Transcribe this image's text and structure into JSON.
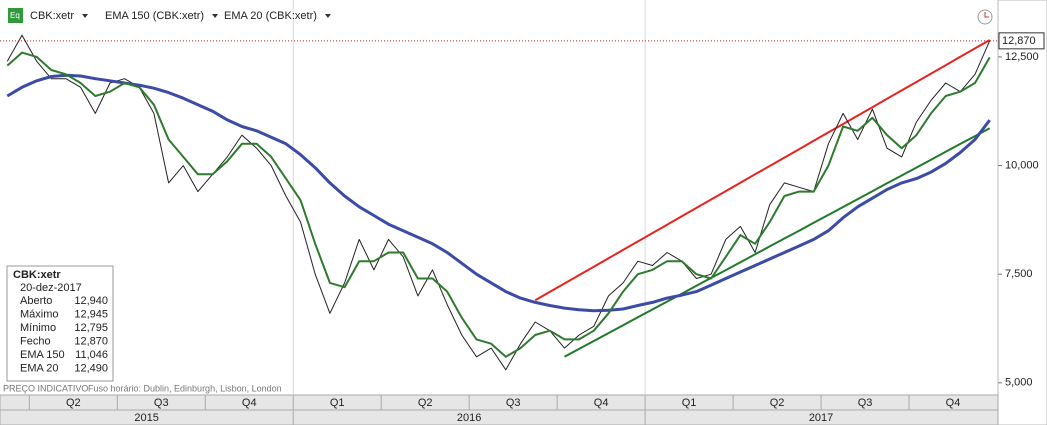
{
  "chart_data": {
    "type": "line",
    "categories": [
      null,
      null,
      "Q2",
      null,
      null,
      null,
      null,
      null,
      "Q3",
      null,
      null,
      null,
      null,
      null,
      "Q4",
      null,
      null,
      null,
      null,
      null,
      "Q1",
      null,
      null,
      null,
      null,
      null,
      "Q2",
      null,
      null,
      null,
      null,
      null,
      "Q3",
      null,
      null,
      null,
      null,
      null,
      "Q4",
      null,
      null,
      null,
      null,
      null,
      "Q1",
      null,
      null,
      null,
      null,
      null,
      "Q2",
      null,
      null,
      null,
      null,
      null,
      "Q3",
      null,
      null,
      null,
      null,
      null,
      "Q4",
      null,
      null,
      null,
      null,
      null
    ],
    "years": [
      "2015",
      "2016",
      "2017"
    ],
    "series": [
      {
        "name": "CBK:xetr",
        "color": "#222222",
        "values": [
          12400,
          13000,
          12400,
          12000,
          12000,
          11800,
          11200,
          11900,
          12000,
          11800,
          11200,
          9600,
          10000,
          9400,
          9800,
          10200,
          10700,
          10400,
          10000,
          9300,
          8700,
          7500,
          6600,
          7300,
          8300,
          7600,
          8300,
          7900,
          7000,
          7600,
          6800,
          6100,
          5600,
          5800,
          5300,
          5900,
          6400,
          6200,
          5800,
          6100,
          6300,
          7000,
          7300,
          7800,
          7700,
          8000,
          7800,
          7400,
          7500,
          8300,
          8600,
          8000,
          9100,
          9600,
          9500,
          9400,
          10500,
          11200,
          10600,
          11300,
          10400,
          10200,
          11000,
          11500,
          11900,
          11700,
          12100,
          12870
        ]
      },
      {
        "name": "EMA 150 (CBK:xetr)",
        "color": "#3b4ba6",
        "values": [
          11600,
          11800,
          11950,
          12050,
          12080,
          12060,
          12000,
          11950,
          11900,
          11850,
          11780,
          11680,
          11550,
          11400,
          11250,
          11050,
          10900,
          10800,
          10650,
          10500,
          10250,
          9950,
          9600,
          9300,
          9050,
          8850,
          8650,
          8500,
          8350,
          8200,
          8000,
          7750,
          7500,
          7300,
          7100,
          6950,
          6850,
          6780,
          6720,
          6680,
          6660,
          6670,
          6700,
          6780,
          6850,
          6950,
          7020,
          7100,
          7250,
          7400,
          7550,
          7700,
          7850,
          8000,
          8150,
          8300,
          8500,
          8800,
          9050,
          9250,
          9450,
          9600,
          9700,
          9850,
          10050,
          10300,
          10600,
          11046
        ]
      },
      {
        "name": "EMA 20 (CBK:xetr)",
        "color": "#2e7a2e",
        "values": [
          12300,
          12600,
          12500,
          12200,
          12100,
          11900,
          11600,
          11700,
          11900,
          11800,
          11400,
          10600,
          10200,
          9800,
          9800,
          10100,
          10500,
          10500,
          10200,
          9700,
          9200,
          8200,
          7300,
          7200,
          7800,
          7800,
          8000,
          8000,
          7400,
          7400,
          7100,
          6500,
          6000,
          5900,
          5600,
          5800,
          6100,
          6200,
          6000,
          6000,
          6200,
          6600,
          7100,
          7500,
          7600,
          7800,
          7800,
          7500,
          7400,
          7900,
          8400,
          8200,
          8700,
          9300,
          9400,
          9400,
          10000,
          10900,
          10800,
          11100,
          10700,
          10400,
          10700,
          11200,
          11600,
          11700,
          11900,
          12490
        ]
      }
    ],
    "trend_lines": [
      {
        "color": "#e8231e",
        "values": [
          null,
          null,
          null,
          null,
          null,
          null,
          null,
          null,
          null,
          null,
          null,
          null,
          null,
          null,
          null,
          null,
          null,
          null,
          null,
          null,
          null,
          null,
          null,
          null,
          null,
          null,
          null,
          null,
          null,
          null,
          null,
          null,
          null,
          null,
          null,
          null,
          6900,
          7093,
          7286,
          7480,
          7673,
          7866,
          8059,
          8252,
          8446,
          8639,
          8832,
          9025,
          9218,
          9412,
          9605,
          9798,
          9991,
          10184,
          10377,
          10571,
          10764,
          10957,
          11150,
          11343,
          11537,
          11730,
          11923,
          12116,
          12309,
          12503,
          12696,
          12890
        ]
      },
      {
        "color": "#1f7a2a",
        "values": [
          null,
          null,
          null,
          null,
          null,
          null,
          null,
          null,
          null,
          null,
          null,
          null,
          null,
          null,
          null,
          null,
          null,
          null,
          null,
          null,
          null,
          null,
          null,
          null,
          null,
          null,
          null,
          null,
          null,
          null,
          null,
          null,
          null,
          null,
          null,
          null,
          null,
          null,
          5600,
          5781,
          5963,
          6144,
          6326,
          6507,
          6688,
          6870,
          7051,
          7233,
          7414,
          7595,
          7777,
          7958,
          8140,
          8321,
          8502,
          8684,
          8865,
          9047,
          9228,
          9409,
          9591,
          9772,
          9953,
          10135,
          10316,
          10498,
          10679,
          10860
        ]
      }
    ],
    "ylim": [
      4720,
      13810
    ],
    "yticks": [
      {
        "value": 5000,
        "label": "5,000"
      },
      {
        "value": 7500,
        "label": "7,500"
      },
      {
        "value": 10000,
        "label": "10,000"
      },
      {
        "value": 12500,
        "label": "12,500"
      }
    ],
    "last_label": "12,870",
    "last_line_color": "#b02020",
    "info_box": {
      "title": "CBK:xetr",
      "date": "20-dez-2017",
      "rows": [
        {
          "label": "Aberto",
          "value": "12,940"
        },
        {
          "label": "Máximo",
          "value": "12,945"
        },
        {
          "label": "Mínimo",
          "value": "12,795"
        },
        {
          "label": "Fecho",
          "value": "12,870"
        },
        {
          "label": "EMA 150",
          "value": "11,046"
        },
        {
          "label": "EMA 20",
          "value": "12,490"
        }
      ]
    },
    "footer": "PREÇO INDICATIVO",
    "timezone": "Fuso horário: Dublin, Edinburgh, Lisbon, London"
  }
}
